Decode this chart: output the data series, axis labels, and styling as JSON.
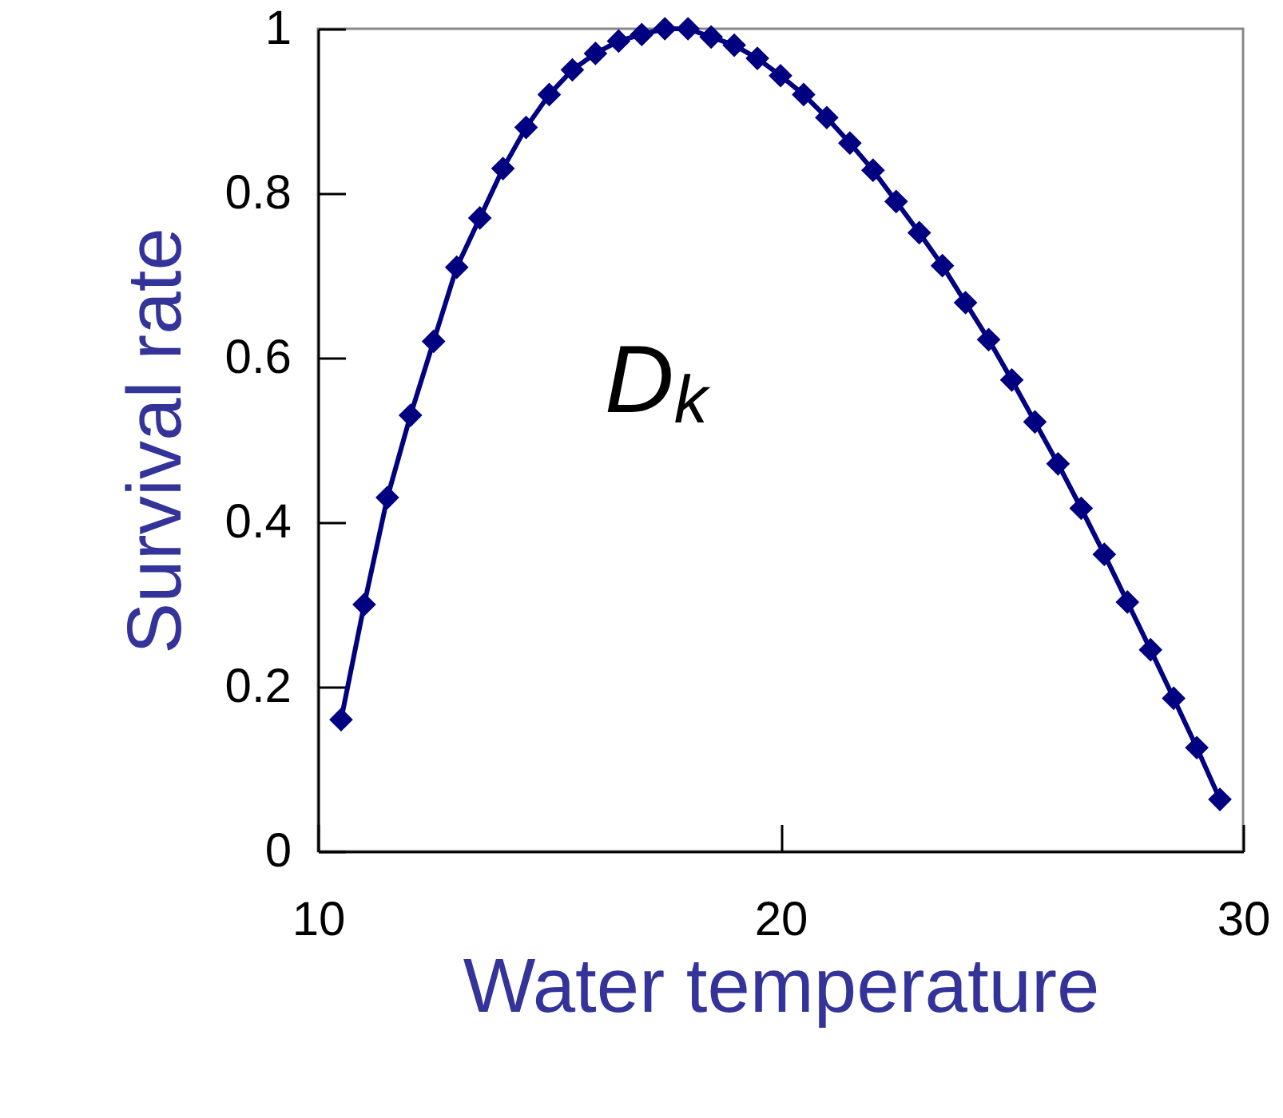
{
  "chart_data": {
    "type": "line",
    "xlabel": "Water temperature",
    "ylabel": "Survival rate",
    "annotations": [
      "D$_{k}$"
    ],
    "x": [
      10.5,
      11,
      11.5,
      12,
      12.5,
      13,
      13.5,
      14,
      14.5,
      15,
      15.5,
      16,
      16.5,
      17,
      17.5,
      18,
      18.5,
      19,
      19.5,
      20,
      20.5,
      21,
      21.5,
      22,
      22.5,
      23,
      23.5,
      24,
      24.5,
      25,
      25.5,
      26,
      26.5,
      27,
      27.5,
      28,
      28.5,
      29,
      29.5
    ],
    "series": [
      {
        "color": "#000080",
        "values": [
          0.16,
          0.3,
          0.43,
          0.53,
          0.62,
          0.71,
          0.77,
          0.83,
          0.88,
          0.92,
          0.95,
          0.97,
          0.985,
          0.993,
          1.0,
          1.0,
          0.99,
          0.98,
          0.964,
          0.943,
          0.92,
          0.892,
          0.861,
          0.828,
          0.79,
          0.752,
          0.712,
          0.667,
          0.622,
          0.573,
          0.522,
          0.471,
          0.417,
          0.361,
          0.303,
          0.245,
          0.186,
          0.126,
          0.063
        ]
      }
    ],
    "xlim": [
      10,
      30
    ],
    "ylim": [
      0,
      1
    ],
    "xticks": [
      10,
      20,
      30
    ],
    "yticks": [
      0,
      0.2,
      0.4,
      0.6,
      0.8,
      1
    ],
    "marker": "diamond",
    "line_style": "solid"
  }
}
